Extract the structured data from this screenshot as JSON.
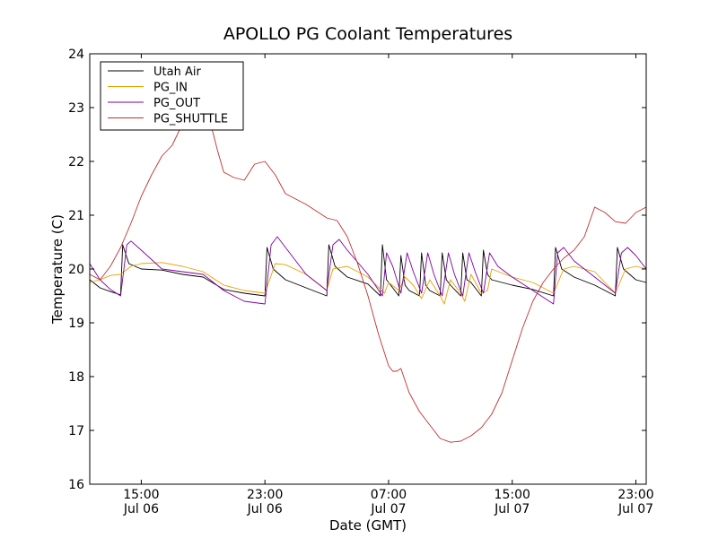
{
  "chart_data": {
    "type": "line",
    "title": "APOLLO PG Coolant Temperatures",
    "xlabel": "Date (GMT)",
    "ylabel": "Temperature (C)",
    "ylim": [
      16,
      24
    ],
    "xlim": [
      10.5,
      37.5
    ],
    "yticks": [
      "16",
      "17",
      "18",
      "19",
      "20",
      "21",
      "22",
      "23",
      "24"
    ],
    "xticks": [
      {
        "x": 13,
        "time": "15:00",
        "date": "Jul 06"
      },
      {
        "x": 19,
        "time": "23:00",
        "date": "Jul 06"
      },
      {
        "x": 25,
        "time": "07:00",
        "date": "Jul 07"
      },
      {
        "x": 31,
        "time": "15:00",
        "date": "Jul 07"
      },
      {
        "x": 37,
        "time": "23:00",
        "date": "Jul 07"
      }
    ],
    "x_unit_note": "hours since Jul 06 09:00 GMT",
    "legend_position": "top-left",
    "series": [
      {
        "name": "Utah Air",
        "color": "#000000",
        "points": [
          [
            10.5,
            19.8
          ],
          [
            11.0,
            19.65
          ],
          [
            11.5,
            19.58
          ],
          [
            12.0,
            19.52
          ],
          [
            12.1,
            20.45
          ],
          [
            12.4,
            20.1
          ],
          [
            13.0,
            20.0
          ],
          [
            14.0,
            19.98
          ],
          [
            15.0,
            19.9
          ],
          [
            16.0,
            19.85
          ],
          [
            17.0,
            19.62
          ],
          [
            18.0,
            19.55
          ],
          [
            19.0,
            19.5
          ],
          [
            19.1,
            20.4
          ],
          [
            19.4,
            20.0
          ],
          [
            20.0,
            19.8
          ],
          [
            21.0,
            19.65
          ],
          [
            22.0,
            19.5
          ],
          [
            22.1,
            20.45
          ],
          [
            22.4,
            20.05
          ],
          [
            23.0,
            19.85
          ],
          [
            24.0,
            19.72
          ],
          [
            24.6,
            19.5
          ],
          [
            24.7,
            20.45
          ],
          [
            24.9,
            19.8
          ],
          [
            25.1,
            19.7
          ],
          [
            25.5,
            19.5
          ],
          [
            25.6,
            20.25
          ],
          [
            25.8,
            19.7
          ],
          [
            26.0,
            19.6
          ],
          [
            26.5,
            19.5
          ],
          [
            26.6,
            20.3
          ],
          [
            26.8,
            19.7
          ],
          [
            27.0,
            19.6
          ],
          [
            27.5,
            19.5
          ],
          [
            27.6,
            20.3
          ],
          [
            27.8,
            19.8
          ],
          [
            28.0,
            19.7
          ],
          [
            28.5,
            19.5
          ],
          [
            28.6,
            20.3
          ],
          [
            28.8,
            19.8
          ],
          [
            29.0,
            19.75
          ],
          [
            29.5,
            19.5
          ],
          [
            29.6,
            20.35
          ],
          [
            29.8,
            19.9
          ],
          [
            30.0,
            19.8
          ],
          [
            31.0,
            19.7
          ],
          [
            32.0,
            19.62
          ],
          [
            33.0,
            19.5
          ],
          [
            33.1,
            20.4
          ],
          [
            33.4,
            20.0
          ],
          [
            34.0,
            19.85
          ],
          [
            35.0,
            19.7
          ],
          [
            36.0,
            19.5
          ],
          [
            36.1,
            20.4
          ],
          [
            36.4,
            20.0
          ],
          [
            37.0,
            19.8
          ],
          [
            37.5,
            19.75
          ]
        ]
      },
      {
        "name": "PG_IN",
        "color": "#e8a000",
        "points": [
          [
            10.5,
            19.75
          ],
          [
            11.0,
            19.8
          ],
          [
            11.5,
            19.88
          ],
          [
            12.0,
            19.9
          ],
          [
            12.5,
            20.05
          ],
          [
            13.0,
            20.1
          ],
          [
            14.0,
            20.12
          ],
          [
            15.0,
            20.05
          ],
          [
            16.0,
            19.95
          ],
          [
            17.0,
            19.7
          ],
          [
            18.0,
            19.6
          ],
          [
            19.0,
            19.55
          ],
          [
            19.5,
            20.1
          ],
          [
            20.0,
            20.08
          ],
          [
            21.0,
            19.9
          ],
          [
            22.0,
            19.6
          ],
          [
            22.3,
            20.0
          ],
          [
            23.0,
            20.05
          ],
          [
            24.0,
            19.85
          ],
          [
            24.8,
            19.55
          ],
          [
            25.0,
            19.75
          ],
          [
            25.5,
            19.6
          ],
          [
            25.8,
            19.85
          ],
          [
            26.2,
            19.7
          ],
          [
            26.6,
            19.45
          ],
          [
            27.0,
            19.8
          ],
          [
            27.5,
            19.5
          ],
          [
            27.7,
            19.35
          ],
          [
            28.0,
            19.8
          ],
          [
            28.5,
            19.55
          ],
          [
            28.7,
            19.4
          ],
          [
            29.0,
            19.9
          ],
          [
            29.5,
            19.55
          ],
          [
            29.8,
            19.6
          ],
          [
            30.0,
            20.0
          ],
          [
            31.0,
            19.85
          ],
          [
            32.0,
            19.75
          ],
          [
            33.0,
            19.55
          ],
          [
            33.5,
            20.0
          ],
          [
            34.0,
            20.05
          ],
          [
            35.0,
            19.95
          ],
          [
            36.0,
            19.55
          ],
          [
            36.5,
            20.0
          ],
          [
            37.0,
            20.05
          ],
          [
            37.5,
            20.0
          ]
        ]
      },
      {
        "name": "PG_OUT",
        "color": "#8000a0",
        "points": [
          [
            10.5,
            20.1
          ],
          [
            11.0,
            19.8
          ],
          [
            11.5,
            19.62
          ],
          [
            12.0,
            19.5
          ],
          [
            12.3,
            20.45
          ],
          [
            12.5,
            20.52
          ],
          [
            13.0,
            20.35
          ],
          [
            14.0,
            20.0
          ],
          [
            15.0,
            19.95
          ],
          [
            16.0,
            19.9
          ],
          [
            17.0,
            19.6
          ],
          [
            18.0,
            19.4
          ],
          [
            19.0,
            19.35
          ],
          [
            19.3,
            20.45
          ],
          [
            19.6,
            20.6
          ],
          [
            20.0,
            20.4
          ],
          [
            21.0,
            19.9
          ],
          [
            22.0,
            19.6
          ],
          [
            22.3,
            20.45
          ],
          [
            22.6,
            20.55
          ],
          [
            23.0,
            20.35
          ],
          [
            24.0,
            19.9
          ],
          [
            24.7,
            19.5
          ],
          [
            24.9,
            20.3
          ],
          [
            25.2,
            20.05
          ],
          [
            25.6,
            19.55
          ],
          [
            25.9,
            20.3
          ],
          [
            26.2,
            19.95
          ],
          [
            26.6,
            19.55
          ],
          [
            26.9,
            20.3
          ],
          [
            27.2,
            19.9
          ],
          [
            27.6,
            19.5
          ],
          [
            27.9,
            20.3
          ],
          [
            28.2,
            19.9
          ],
          [
            28.6,
            19.5
          ],
          [
            28.9,
            20.3
          ],
          [
            29.2,
            19.95
          ],
          [
            29.6,
            19.55
          ],
          [
            29.9,
            20.3
          ],
          [
            30.3,
            20.05
          ],
          [
            31.0,
            19.85
          ],
          [
            32.0,
            19.6
          ],
          [
            33.0,
            19.35
          ],
          [
            33.2,
            20.3
          ],
          [
            33.5,
            20.4
          ],
          [
            34.0,
            20.15
          ],
          [
            35.0,
            19.85
          ],
          [
            36.0,
            19.55
          ],
          [
            36.3,
            20.3
          ],
          [
            36.6,
            20.4
          ],
          [
            37.0,
            20.25
          ],
          [
            37.5,
            20.0
          ]
        ]
      },
      {
        "name": "PG_SHUTTLE",
        "color": "#c03030",
        "points": [
          [
            10.5,
            19.9
          ],
          [
            11.0,
            19.8
          ],
          [
            11.5,
            20.05
          ],
          [
            12.0,
            20.4
          ],
          [
            12.5,
            20.85
          ],
          [
            13.0,
            21.35
          ],
          [
            13.5,
            21.75
          ],
          [
            14.0,
            22.1
          ],
          [
            14.5,
            22.3
          ],
          [
            15.0,
            22.7
          ],
          [
            15.5,
            23.05
          ],
          [
            16.0,
            23.2
          ],
          [
            16.3,
            22.8
          ],
          [
            16.7,
            22.2
          ],
          [
            17.0,
            21.8
          ],
          [
            17.5,
            21.7
          ],
          [
            18.0,
            21.65
          ],
          [
            18.5,
            21.95
          ],
          [
            19.0,
            22.0
          ],
          [
            19.5,
            21.75
          ],
          [
            20.0,
            21.4
          ],
          [
            21.0,
            21.2
          ],
          [
            22.0,
            20.95
          ],
          [
            22.5,
            20.9
          ],
          [
            23.0,
            20.6
          ],
          [
            23.5,
            20.1
          ],
          [
            24.0,
            19.5
          ],
          [
            24.5,
            18.8
          ],
          [
            25.0,
            18.2
          ],
          [
            25.2,
            18.1
          ],
          [
            25.4,
            18.1
          ],
          [
            25.6,
            18.15
          ],
          [
            26.0,
            17.7
          ],
          [
            26.5,
            17.35
          ],
          [
            27.0,
            17.1
          ],
          [
            27.5,
            16.85
          ],
          [
            28.0,
            16.78
          ],
          [
            28.5,
            16.8
          ],
          [
            29.0,
            16.9
          ],
          [
            29.5,
            17.05
          ],
          [
            30.0,
            17.3
          ],
          [
            30.5,
            17.7
          ],
          [
            31.0,
            18.3
          ],
          [
            31.5,
            18.9
          ],
          [
            32.0,
            19.4
          ],
          [
            32.5,
            19.75
          ],
          [
            33.0,
            20.0
          ],
          [
            33.5,
            20.2
          ],
          [
            34.0,
            20.35
          ],
          [
            34.5,
            20.6
          ],
          [
            35.0,
            21.15
          ],
          [
            35.5,
            21.05
          ],
          [
            36.0,
            20.88
          ],
          [
            36.5,
            20.85
          ],
          [
            37.0,
            21.05
          ],
          [
            37.5,
            21.15
          ]
        ]
      }
    ]
  }
}
